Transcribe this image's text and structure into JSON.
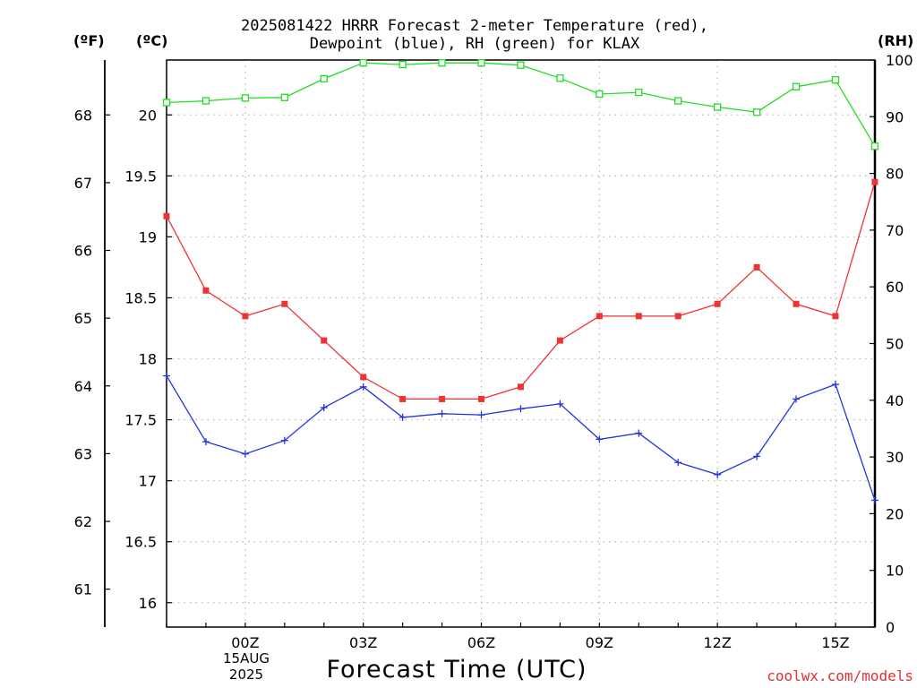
{
  "title_line1": "2025081422 HRRR Forecast 2-meter Temperature (red),",
  "title_line2": "Dewpoint (blue), RH (green) for KLAX",
  "unit_f": "(ºF)",
  "unit_c": "(ºC)",
  "unit_rh": "(RH)",
  "xlabel": "Forecast Time (UTC)",
  "credit": "coolwx.com/models",
  "date_line1": "15AUG",
  "date_line2": "2025",
  "colors": {
    "temperature": "#ee3333",
    "dewpoint": "#2233dd",
    "rh": "#22dd22",
    "grid": "#bbbbbb"
  },
  "chart_data": {
    "type": "line",
    "x": [
      "22Z",
      "23Z",
      "00Z",
      "01Z",
      "02Z",
      "03Z",
      "04Z",
      "05Z",
      "06Z",
      "07Z",
      "08Z",
      "09Z",
      "10Z",
      "11Z",
      "12Z",
      "13Z",
      "14Z",
      "15Z",
      "16Z"
    ],
    "x_tick_labels": [
      "00Z",
      "03Z",
      "06Z",
      "09Z",
      "12Z",
      "15Z"
    ],
    "y_left_celsius": {
      "range": [
        15.8,
        20.45
      ],
      "ticks": [
        16,
        16.5,
        17,
        17.5,
        18,
        18.5,
        19,
        19.5,
        20
      ]
    },
    "y_left_fahrenheit": {
      "ticks": [
        61,
        62,
        63,
        64,
        65,
        66,
        67,
        68
      ]
    },
    "y_right_rh": {
      "range": [
        0,
        100
      ],
      "ticks": [
        0,
        10,
        20,
        30,
        40,
        50,
        60,
        70,
        80,
        90,
        100
      ]
    },
    "grid": true,
    "series": [
      {
        "name": "Temperature (red)",
        "axis": "celsius",
        "marker": "filled-square",
        "values": [
          19.17,
          18.56,
          18.35,
          18.45,
          18.15,
          17.85,
          17.67,
          17.67,
          17.67,
          17.77,
          18.15,
          18.35,
          18.35,
          18.35,
          18.45,
          18.75,
          18.45,
          18.35,
          19.45
        ]
      },
      {
        "name": "Dewpoint (blue)",
        "axis": "celsius",
        "marker": "plus",
        "values": [
          17.86,
          17.32,
          17.22,
          17.33,
          17.6,
          17.77,
          17.52,
          17.55,
          17.54,
          17.59,
          17.63,
          17.34,
          17.39,
          17.15,
          17.05,
          17.2,
          17.67,
          17.79,
          16.84
        ]
      },
      {
        "name": "RH (green)",
        "axis": "rh",
        "marker": "open-square",
        "values": [
          92.5,
          92.8,
          93.3,
          93.4,
          96.7,
          99.5,
          99.2,
          99.5,
          99.5,
          99.1,
          96.8,
          94.0,
          94.3,
          92.8,
          91.7,
          90.8,
          95.3,
          96.5,
          84.8
        ]
      }
    ]
  }
}
